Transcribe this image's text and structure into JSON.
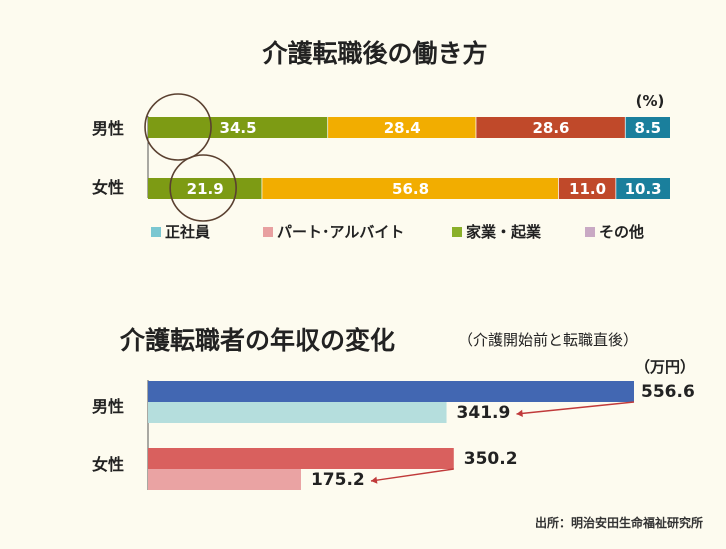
{
  "chart_data": [
    {
      "type": "bar",
      "orientation": "horizontal",
      "stacked": true,
      "title": "介護転職後の働き方",
      "unit": "(%)",
      "categories": [
        "男性",
        "女性"
      ],
      "series": [
        {
          "name": "正社員",
          "color": "#1a7f9c",
          "values": [
            8.5,
            10.3
          ]
        },
        {
          "name": "パート･アルバイト",
          "color": "#f2ad00",
          "values": [
            28.4,
            56.8
          ]
        },
        {
          "name": "家業・起業",
          "color": "#7d9b14",
          "values": [
            34.5,
            21.9
          ]
        },
        {
          "name": "その他",
          "color": "#c0492a",
          "values": [
            28.6,
            11.0
          ]
        }
      ],
      "bar_order": [
        "家業・起業",
        "パート･アルバイト",
        "その他",
        "正社員"
      ],
      "legend": {
        "placement": "bottom",
        "entries": [
          {
            "label": "正社員",
            "color": "#7bc7d1"
          },
          {
            "label": "パート･アルバイト",
            "color": "#e8a0a0"
          },
          {
            "label": "家業・起業",
            "color": "#8ab02a"
          },
          {
            "label": "その他",
            "color": "#c9a9c4"
          }
        ]
      },
      "circled_values": [
        34.5,
        21.9
      ]
    },
    {
      "type": "bar",
      "orientation": "horizontal",
      "title": "介護転職者の年収の変化",
      "subtitle": "（介護開始前と転職直後）",
      "unit": "（万円）",
      "categories": [
        "男性",
        "女性"
      ],
      "series": [
        {
          "name": "介護開始前",
          "colors": [
            "#4267b2",
            "#d9605e"
          ],
          "values": [
            556.6,
            350.2
          ]
        },
        {
          "name": "転職直後",
          "colors": [
            "#b5dedd",
            "#eaa3a3"
          ],
          "values": [
            341.9,
            175.2
          ]
        }
      ],
      "xlim": [
        0,
        556.6
      ]
    }
  ],
  "source": "出所：明治安田生命福祉研究所"
}
